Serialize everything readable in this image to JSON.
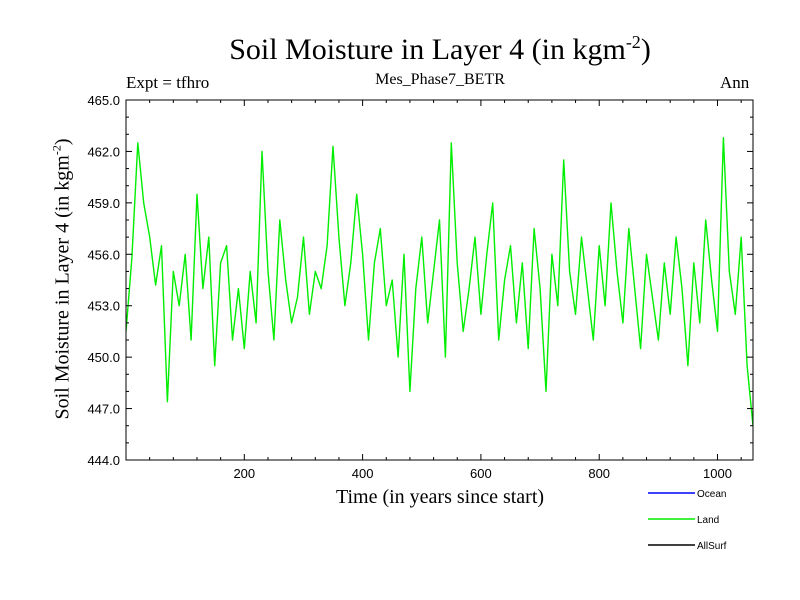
{
  "chart_data": {
    "type": "line",
    "title": "Soil Moisture in Layer 4 (in kgm",
    "title_exponent": "-2",
    "title_close": ")",
    "subtitle": "Mes_Phase7_BETR",
    "left_annotation": "Expt = tfhro",
    "right_annotation": "Ann",
    "xlabel": "Time (in years since start)",
    "ylabel": "Soil Moisture in Layer 4 (in kgm",
    "ylabel_exponent": "-2",
    "ylabel_close": ")",
    "xlim": [
      0,
      1060
    ],
    "ylim": [
      444.0,
      465.0
    ],
    "x_ticks": [
      200,
      400,
      600,
      800,
      1000
    ],
    "x_tick_labels": [
      "200",
      "400",
      "600",
      "800",
      "1000"
    ],
    "y_ticks": [
      444.0,
      447.0,
      450.0,
      453.0,
      456.0,
      459.0,
      462.0,
      465.0
    ],
    "y_tick_labels": [
      "444.0",
      "447.0",
      "450.0",
      "453.0",
      "456.0",
      "459.0",
      "462.0",
      "465.0"
    ],
    "legend": [
      {
        "name": "Ocean",
        "color": "#0000ff"
      },
      {
        "name": "Land",
        "color": "#00ee00"
      },
      {
        "name": "AllSurf",
        "color": "#000000"
      }
    ],
    "series": [
      {
        "name": "Land",
        "color": "#00ee00",
        "x": [
          0,
          10,
          20,
          30,
          40,
          50,
          60,
          70,
          80,
          90,
          100,
          110,
          120,
          130,
          140,
          150,
          160,
          170,
          180,
          190,
          200,
          210,
          220,
          230,
          240,
          250,
          260,
          270,
          280,
          290,
          300,
          310,
          320,
          330,
          340,
          350,
          360,
          370,
          380,
          390,
          400,
          410,
          420,
          430,
          440,
          450,
          460,
          470,
          480,
          490,
          500,
          510,
          520,
          530,
          540,
          550,
          560,
          570,
          580,
          590,
          600,
          610,
          620,
          630,
          640,
          650,
          660,
          670,
          680,
          690,
          700,
          710,
          720,
          730,
          740,
          750,
          760,
          770,
          780,
          790,
          800,
          810,
          820,
          830,
          840,
          850,
          860,
          870,
          880,
          890,
          900,
          910,
          920,
          930,
          940,
          950,
          960,
          970,
          980,
          990,
          1000,
          1010,
          1020,
          1030,
          1040,
          1050,
          1060
        ],
        "values": [
          451.5,
          455.8,
          462.5,
          459.0,
          457.0,
          454.2,
          456.5,
          447.4,
          455.0,
          453.0,
          456.0,
          451.0,
          459.5,
          454.0,
          457.0,
          449.5,
          455.5,
          456.5,
          451.0,
          454.0,
          450.5,
          455.0,
          452.0,
          462.0,
          455.0,
          451.0,
          458.0,
          454.5,
          452.0,
          453.5,
          457.0,
          452.5,
          455.0,
          454.0,
          456.5,
          462.3,
          457.0,
          453.0,
          455.5,
          459.5,
          456.0,
          451.0,
          455.5,
          457.5,
          453.0,
          454.5,
          450.0,
          456.0,
          448.0,
          454.0,
          457.0,
          452.0,
          455.0,
          458.0,
          450.0,
          462.5,
          455.5,
          451.5,
          454.0,
          457.0,
          452.5,
          456.0,
          459.0,
          451.0,
          454.5,
          456.5,
          452.0,
          455.5,
          450.5,
          457.5,
          454.0,
          448.0,
          456.0,
          453.0,
          461.5,
          455.0,
          452.5,
          457.0,
          454.0,
          451.0,
          456.5,
          453.0,
          459.0,
          455.0,
          452.0,
          457.5,
          454.0,
          450.5,
          456.0,
          453.5,
          451.0,
          455.5,
          452.5,
          457.0,
          454.0,
          449.5,
          455.5,
          452.0,
          458.0,
          454.5,
          451.5,
          462.8,
          455.0,
          452.5,
          457.0,
          449.5,
          446.0
        ]
      }
    ]
  }
}
